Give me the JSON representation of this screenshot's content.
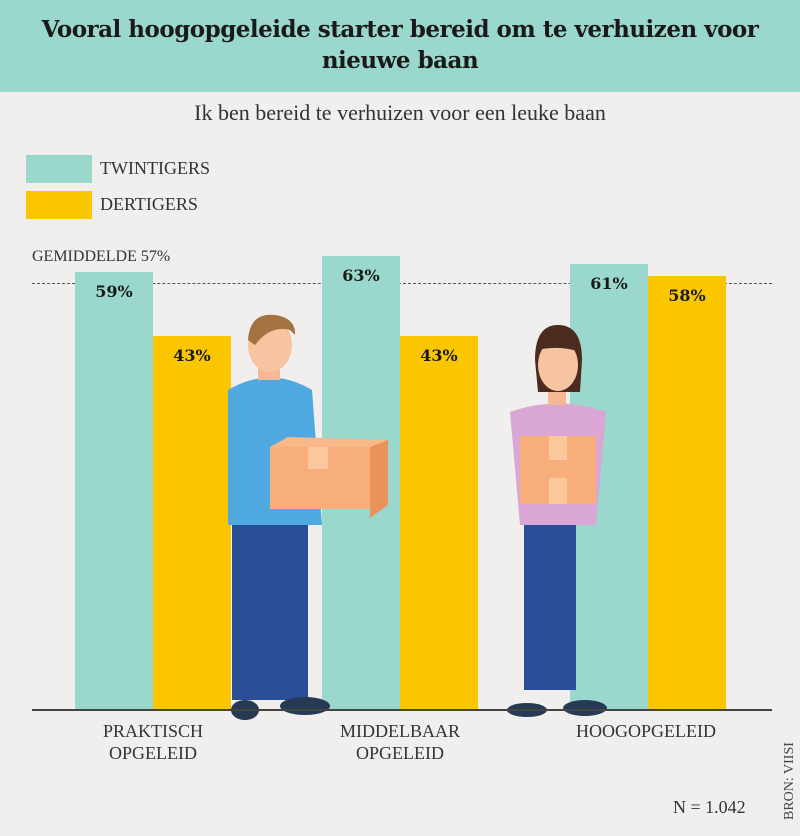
{
  "title": "Vooral hoogopgeleide starter bereid om te verhuizen voor nieuwe baan",
  "chart_data": {
    "type": "bar",
    "title": "Vooral hoogopgeleide starter bereid om te verhuizen voor nieuwe baan",
    "subtitle": "Ik ben bereid te verhuizen voor een leuke baan",
    "categories": [
      [
        "PRAKTISCH",
        "OPGELEID"
      ],
      [
        "MIDDELBAAR",
        "OPGELEID"
      ],
      [
        "HOOGOPGELEID",
        ""
      ]
    ],
    "series": [
      {
        "name": "TWINTIGERS",
        "color": "#9ad8cd",
        "values": [
          59,
          63,
          61
        ],
        "labels": [
          "59%",
          "63%",
          "61%"
        ]
      },
      {
        "name": "DERTIGERS",
        "color": "#f9c600",
        "values": [
          43,
          43,
          58
        ],
        "labels": [
          "43%",
          "43%",
          "58%"
        ]
      }
    ],
    "reference_line": {
      "label": "GEMIDDELDE 57%",
      "value": 57
    },
    "legend": "top-left",
    "grid": false
  },
  "footer": {
    "n": "N = 1.042",
    "source": "BRON: VIISI"
  }
}
